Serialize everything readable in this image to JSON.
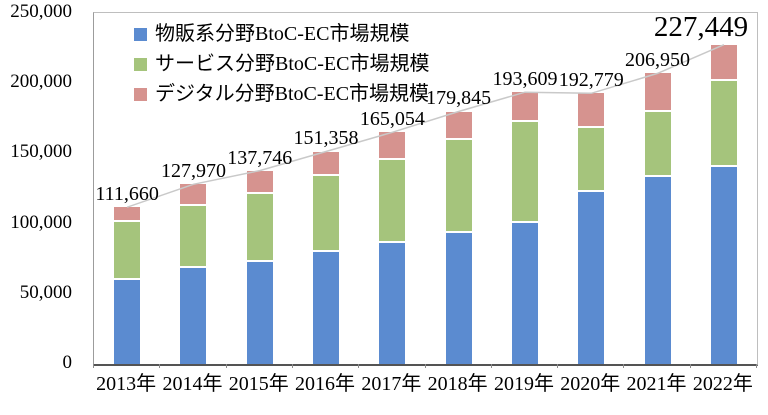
{
  "chart_data": {
    "type": "bar",
    "stacked": true,
    "grid": false,
    "legend_position": "top-left-inside",
    "categories": [
      "2013年",
      "2014年",
      "2015年",
      "2016年",
      "2017年",
      "2018年",
      "2019年",
      "2020年",
      "2021年",
      "2022年"
    ],
    "series": [
      {
        "name": "物販系分野BtoC-EC市場規模",
        "color": "#5B8BD0",
        "values": [
          59931,
          68043,
          72398,
          80043,
          86008,
          92992,
          100515,
          122333,
          132865,
          139997
        ]
      },
      {
        "name": "サービス分野BtoC-EC市場規模",
        "color": "#A5C47C",
        "values": [
          41310,
          44816,
          49014,
          53532,
          59568,
          66471,
          71672,
          45832,
          46424,
          61477
        ]
      },
      {
        "name": "デジタル分野BtoC-EC市場規模",
        "color": "#D6938F",
        "values": [
          10419,
          15111,
          16334,
          17782,
          19478,
          20382,
          21422,
          24614,
          27661,
          25974
        ]
      }
    ],
    "totals": [
      111660,
      127970,
      137746,
      151358,
      165054,
      179845,
      193609,
      192779,
      206950,
      227449
    ],
    "total_labels": [
      "111,660",
      "127,970",
      "137,746",
      "151,358",
      "165,054",
      "179,845",
      "193,609",
      "192,779",
      "206,950",
      "227,449"
    ],
    "emphasized_last_label": true,
    "total_line_color": "#c9c9c9",
    "ylim": [
      0,
      250000
    ],
    "y_ticks": [
      {
        "value": 0,
        "label": "0"
      },
      {
        "value": 50000,
        "label": "50,000"
      },
      {
        "value": 100000,
        "label": "100,000"
      },
      {
        "value": 150000,
        "label": "150,000"
      },
      {
        "value": 200000,
        "label": "200,000"
      },
      {
        "value": 250000,
        "label": "250,000"
      }
    ],
    "xlabel": "",
    "ylabel": "",
    "title": ""
  }
}
